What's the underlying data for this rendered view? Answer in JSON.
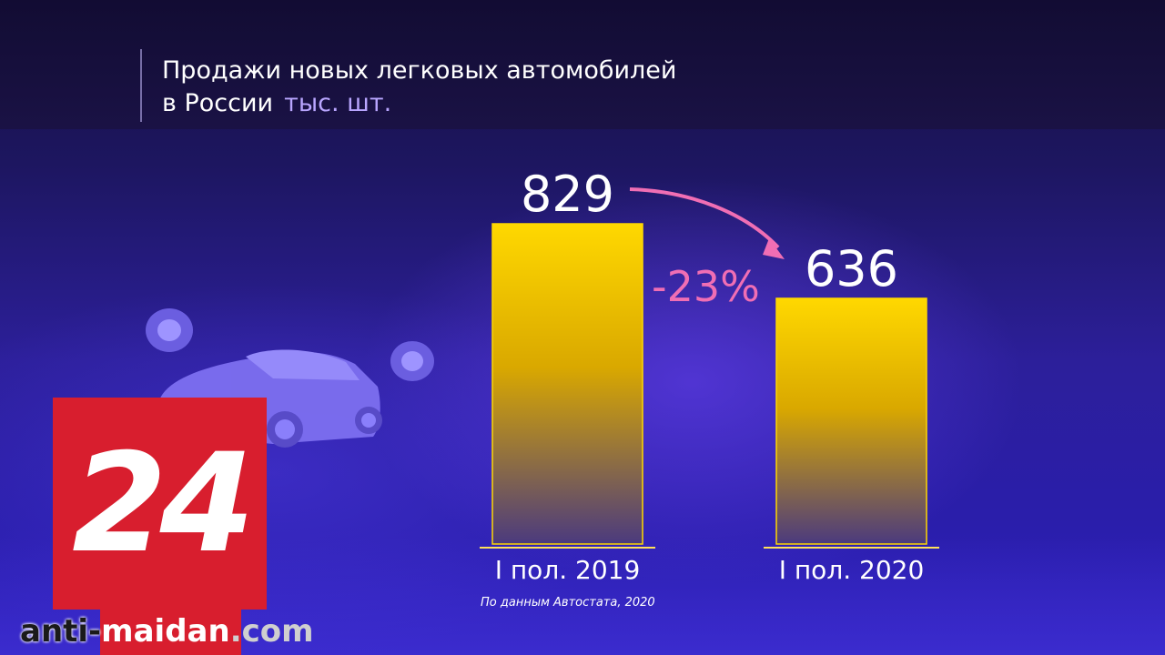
{
  "title": {
    "line1": "Продажи новых легковых автомобилей",
    "line2": "в России",
    "unit": "тыс. шт."
  },
  "chart_data": {
    "type": "bar",
    "categories": [
      "I пол. 2019",
      "I пол. 2020"
    ],
    "values": [
      829,
      636
    ],
    "value_labels": [
      "829",
      "636"
    ],
    "change_label": "-23%",
    "ylim": [
      0,
      1000
    ],
    "colors": {
      "bar_top": "#ffd800",
      "bar_bottom": "#5a3f7a",
      "arrow": "#f06eb4",
      "text": "#ffffff"
    }
  },
  "source": "По данным Автостата, 2020",
  "logo": {
    "text": "24"
  },
  "watermark": {
    "part1": "anti-",
    "part2": "maidan",
    "part3": ".com"
  }
}
